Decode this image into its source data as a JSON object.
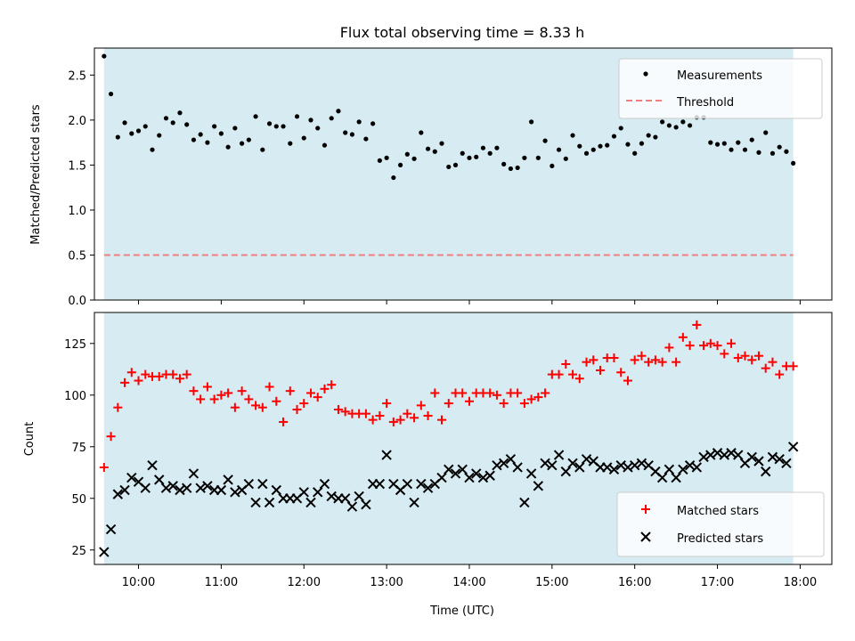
{
  "title": "Flux total observing time = 8.33 h",
  "chart_data": [
    {
      "type": "scatter",
      "ylabel": "Matched/Predicted stars",
      "xlim": [
        "09:28",
        "18:23"
      ],
      "ylim": [
        0,
        2.8
      ],
      "yticks": [
        "0.0",
        "0.5",
        "1.0",
        "1.5",
        "2.0",
        "2.5"
      ],
      "shaded_interval": [
        "09:35",
        "17:55"
      ],
      "shade_color": "#add8e6",
      "threshold": 0.5,
      "legend_position": "upper-right",
      "legend": {
        "measurements": "Measurements",
        "threshold": "Threshold"
      },
      "series": [
        {
          "name": "Measurements",
          "color": "#000000",
          "x": [
            "09:35",
            "09:40",
            "09:45",
            "09:50",
            "09:55",
            "10:00",
            "10:05",
            "10:10",
            "10:15",
            "10:20",
            "10:25",
            "10:30",
            "10:35",
            "10:40",
            "10:45",
            "10:50",
            "10:55",
            "11:00",
            "11:05",
            "11:10",
            "11:15",
            "11:20",
            "11:25",
            "11:30",
            "11:35",
            "11:40",
            "11:45",
            "11:50",
            "11:55",
            "12:00",
            "12:05",
            "12:10",
            "12:15",
            "12:20",
            "12:25",
            "12:30",
            "12:35",
            "12:40",
            "12:45",
            "12:50",
            "12:55",
            "13:00",
            "13:05",
            "13:10",
            "13:15",
            "13:20",
            "13:25",
            "13:30",
            "13:35",
            "13:40",
            "13:45",
            "13:50",
            "13:55",
            "14:00",
            "14:05",
            "14:10",
            "14:15",
            "14:20",
            "14:25",
            "14:30",
            "14:35",
            "14:40",
            "14:45",
            "14:50",
            "14:55",
            "15:00",
            "15:05",
            "15:10",
            "15:15",
            "15:20",
            "15:25",
            "15:30",
            "15:35",
            "15:40",
            "15:45",
            "15:50",
            "15:55",
            "16:00",
            "16:05",
            "16:10",
            "16:15",
            "16:20",
            "16:25",
            "16:30",
            "16:35",
            "16:40",
            "16:45",
            "16:50",
            "16:55",
            "17:00",
            "17:05",
            "17:10",
            "17:15",
            "17:20",
            "17:25",
            "17:30",
            "17:35",
            "17:40",
            "17:45",
            "17:50",
            "17:55"
          ],
          "values": [
            2.71,
            2.29,
            1.81,
            1.97,
            1.85,
            1.88,
            1.93,
            1.67,
            1.83,
            2.02,
            1.97,
            2.08,
            1.95,
            1.78,
            1.84,
            1.75,
            1.93,
            1.85,
            1.7,
            1.91,
            1.74,
            1.78,
            2.04,
            1.67,
            1.96,
            1.93,
            1.93,
            1.74,
            2.04,
            1.8,
            2.0,
            1.91,
            1.72,
            2.02,
            2.1,
            1.86,
            1.84,
            1.98,
            1.79,
            1.96,
            1.55,
            1.58,
            1.36,
            1.5,
            1.62,
            1.57,
            1.86,
            1.68,
            1.65,
            1.74,
            1.48,
            1.5,
            1.63,
            1.58,
            1.59,
            1.69,
            1.63,
            1.69,
            1.51,
            1.46,
            1.47,
            1.58,
            1.98,
            1.58,
            1.77,
            1.49,
            1.67,
            1.57,
            1.83,
            1.71,
            1.63,
            1.67,
            1.71,
            1.72,
            1.82,
            1.91,
            1.73,
            1.63,
            1.74,
            1.83,
            1.81,
            1.98,
            1.94,
            1.92,
            1.98,
            1.94,
            2.03,
            2.03,
            1.75,
            1.73,
            1.74,
            1.67,
            1.75,
            1.67,
            1.78,
            1.64,
            1.86,
            1.63,
            1.7,
            1.65,
            1.52
          ]
        }
      ]
    },
    {
      "type": "scatter",
      "ylabel": "Count",
      "xlabel": "Time (UTC)",
      "xlim": [
        "09:28",
        "18:23"
      ],
      "ylim": [
        18,
        140
      ],
      "yticks": [
        "25",
        "50",
        "75",
        "100",
        "125"
      ],
      "xticks": [
        "10:00",
        "11:00",
        "12:00",
        "13:00",
        "14:00",
        "15:00",
        "16:00",
        "17:00",
        "18:00"
      ],
      "shaded_interval": [
        "09:35",
        "17:55"
      ],
      "shade_color": "#add8e6",
      "legend_position": "lower-right",
      "series": [
        {
          "name": "Matched stars",
          "color": "#ff0000",
          "marker": "+",
          "x": [
            "09:35",
            "09:40",
            "09:45",
            "09:50",
            "09:55",
            "10:00",
            "10:05",
            "10:10",
            "10:15",
            "10:20",
            "10:25",
            "10:30",
            "10:35",
            "10:40",
            "10:45",
            "10:50",
            "10:55",
            "11:00",
            "11:05",
            "11:10",
            "11:15",
            "11:20",
            "11:25",
            "11:30",
            "11:35",
            "11:40",
            "11:45",
            "11:50",
            "11:55",
            "12:00",
            "12:05",
            "12:10",
            "12:15",
            "12:20",
            "12:25",
            "12:30",
            "12:35",
            "12:40",
            "12:45",
            "12:50",
            "12:55",
            "13:00",
            "13:05",
            "13:10",
            "13:15",
            "13:20",
            "13:25",
            "13:30",
            "13:35",
            "13:40",
            "13:45",
            "13:50",
            "13:55",
            "14:00",
            "14:05",
            "14:10",
            "14:15",
            "14:20",
            "14:25",
            "14:30",
            "14:35",
            "14:40",
            "14:45",
            "14:50",
            "14:55",
            "15:00",
            "15:05",
            "15:10",
            "15:15",
            "15:20",
            "15:25",
            "15:30",
            "15:35",
            "15:40",
            "15:45",
            "15:50",
            "15:55",
            "16:00",
            "16:05",
            "16:10",
            "16:15",
            "16:20",
            "16:25",
            "16:30",
            "16:35",
            "16:40",
            "16:45",
            "16:50",
            "16:55",
            "17:00",
            "17:05",
            "17:10",
            "17:15",
            "17:20",
            "17:25",
            "17:30",
            "17:35",
            "17:40",
            "17:45",
            "17:50",
            "17:55"
          ],
          "values": [
            65,
            80,
            94,
            106,
            111,
            107,
            110,
            109,
            109,
            110,
            110,
            108,
            110,
            102,
            98,
            104,
            98,
            100,
            101,
            94,
            102,
            98,
            95,
            94,
            104,
            97,
            87,
            102,
            93,
            96,
            101,
            99,
            103,
            105,
            93,
            92,
            91,
            91,
            91,
            88,
            90,
            96,
            87,
            88,
            91,
            89,
            95,
            90,
            101,
            88,
            96,
            101,
            101,
            97,
            101,
            101,
            101,
            100,
            96,
            101,
            101,
            96,
            98,
            99,
            101,
            110,
            110,
            115,
            110,
            108,
            116,
            117,
            112,
            118,
            118,
            111,
            107,
            117,
            119,
            116,
            117,
            116,
            123,
            116,
            128,
            124,
            134,
            124,
            125,
            124,
            120,
            125,
            118,
            119,
            117,
            119,
            113,
            116,
            110,
            114,
            114
          ]
        },
        {
          "name": "Predicted stars",
          "color": "#000000",
          "marker": "x",
          "x": [
            "09:35",
            "09:40",
            "09:45",
            "09:50",
            "09:55",
            "10:00",
            "10:05",
            "10:10",
            "10:15",
            "10:20",
            "10:25",
            "10:30",
            "10:35",
            "10:40",
            "10:45",
            "10:50",
            "10:55",
            "11:00",
            "11:05",
            "11:10",
            "11:15",
            "11:20",
            "11:25",
            "11:30",
            "11:35",
            "11:40",
            "11:45",
            "11:50",
            "11:55",
            "12:00",
            "12:05",
            "12:10",
            "12:15",
            "12:20",
            "12:25",
            "12:30",
            "12:35",
            "12:40",
            "12:45",
            "12:50",
            "12:55",
            "13:00",
            "13:05",
            "13:10",
            "13:15",
            "13:20",
            "13:25",
            "13:30",
            "13:35",
            "13:40",
            "13:45",
            "13:50",
            "13:55",
            "14:00",
            "14:05",
            "14:10",
            "14:15",
            "14:20",
            "14:25",
            "14:30",
            "14:35",
            "14:40",
            "14:45",
            "14:50",
            "14:55",
            "15:00",
            "15:05",
            "15:10",
            "15:15",
            "15:20",
            "15:25",
            "15:30",
            "15:35",
            "15:40",
            "15:45",
            "15:50",
            "15:55",
            "16:00",
            "16:05",
            "16:10",
            "16:15",
            "16:20",
            "16:25",
            "16:30",
            "16:35",
            "16:40",
            "16:45",
            "16:50",
            "16:55",
            "17:00",
            "17:05",
            "17:10",
            "17:15",
            "17:20",
            "17:25",
            "17:30",
            "17:35",
            "17:40",
            "17:45",
            "17:50",
            "17:55"
          ],
          "values": [
            24,
            35,
            52,
            54,
            60,
            58,
            55,
            66,
            59,
            55,
            56,
            54,
            55,
            62,
            55,
            56,
            54,
            54,
            59,
            53,
            54,
            57,
            48,
            57,
            48,
            54,
            50,
            50,
            50,
            53,
            48,
            53,
            57,
            51,
            50,
            50,
            46,
            51,
            47,
            57,
            57,
            71,
            57,
            54,
            57,
            48,
            57,
            55,
            57,
            60,
            64,
            62,
            64,
            60,
            62,
            60,
            61,
            66,
            67,
            69,
            65,
            48,
            62,
            56,
            67,
            66,
            71,
            63,
            67,
            65,
            69,
            68,
            65,
            65,
            64,
            66,
            65,
            66,
            67,
            66,
            63,
            60,
            64,
            60,
            64,
            66,
            65,
            70,
            71,
            72,
            71,
            72,
            71,
            67,
            70,
            68,
            63,
            70,
            69,
            67,
            75
          ]
        }
      ]
    }
  ]
}
